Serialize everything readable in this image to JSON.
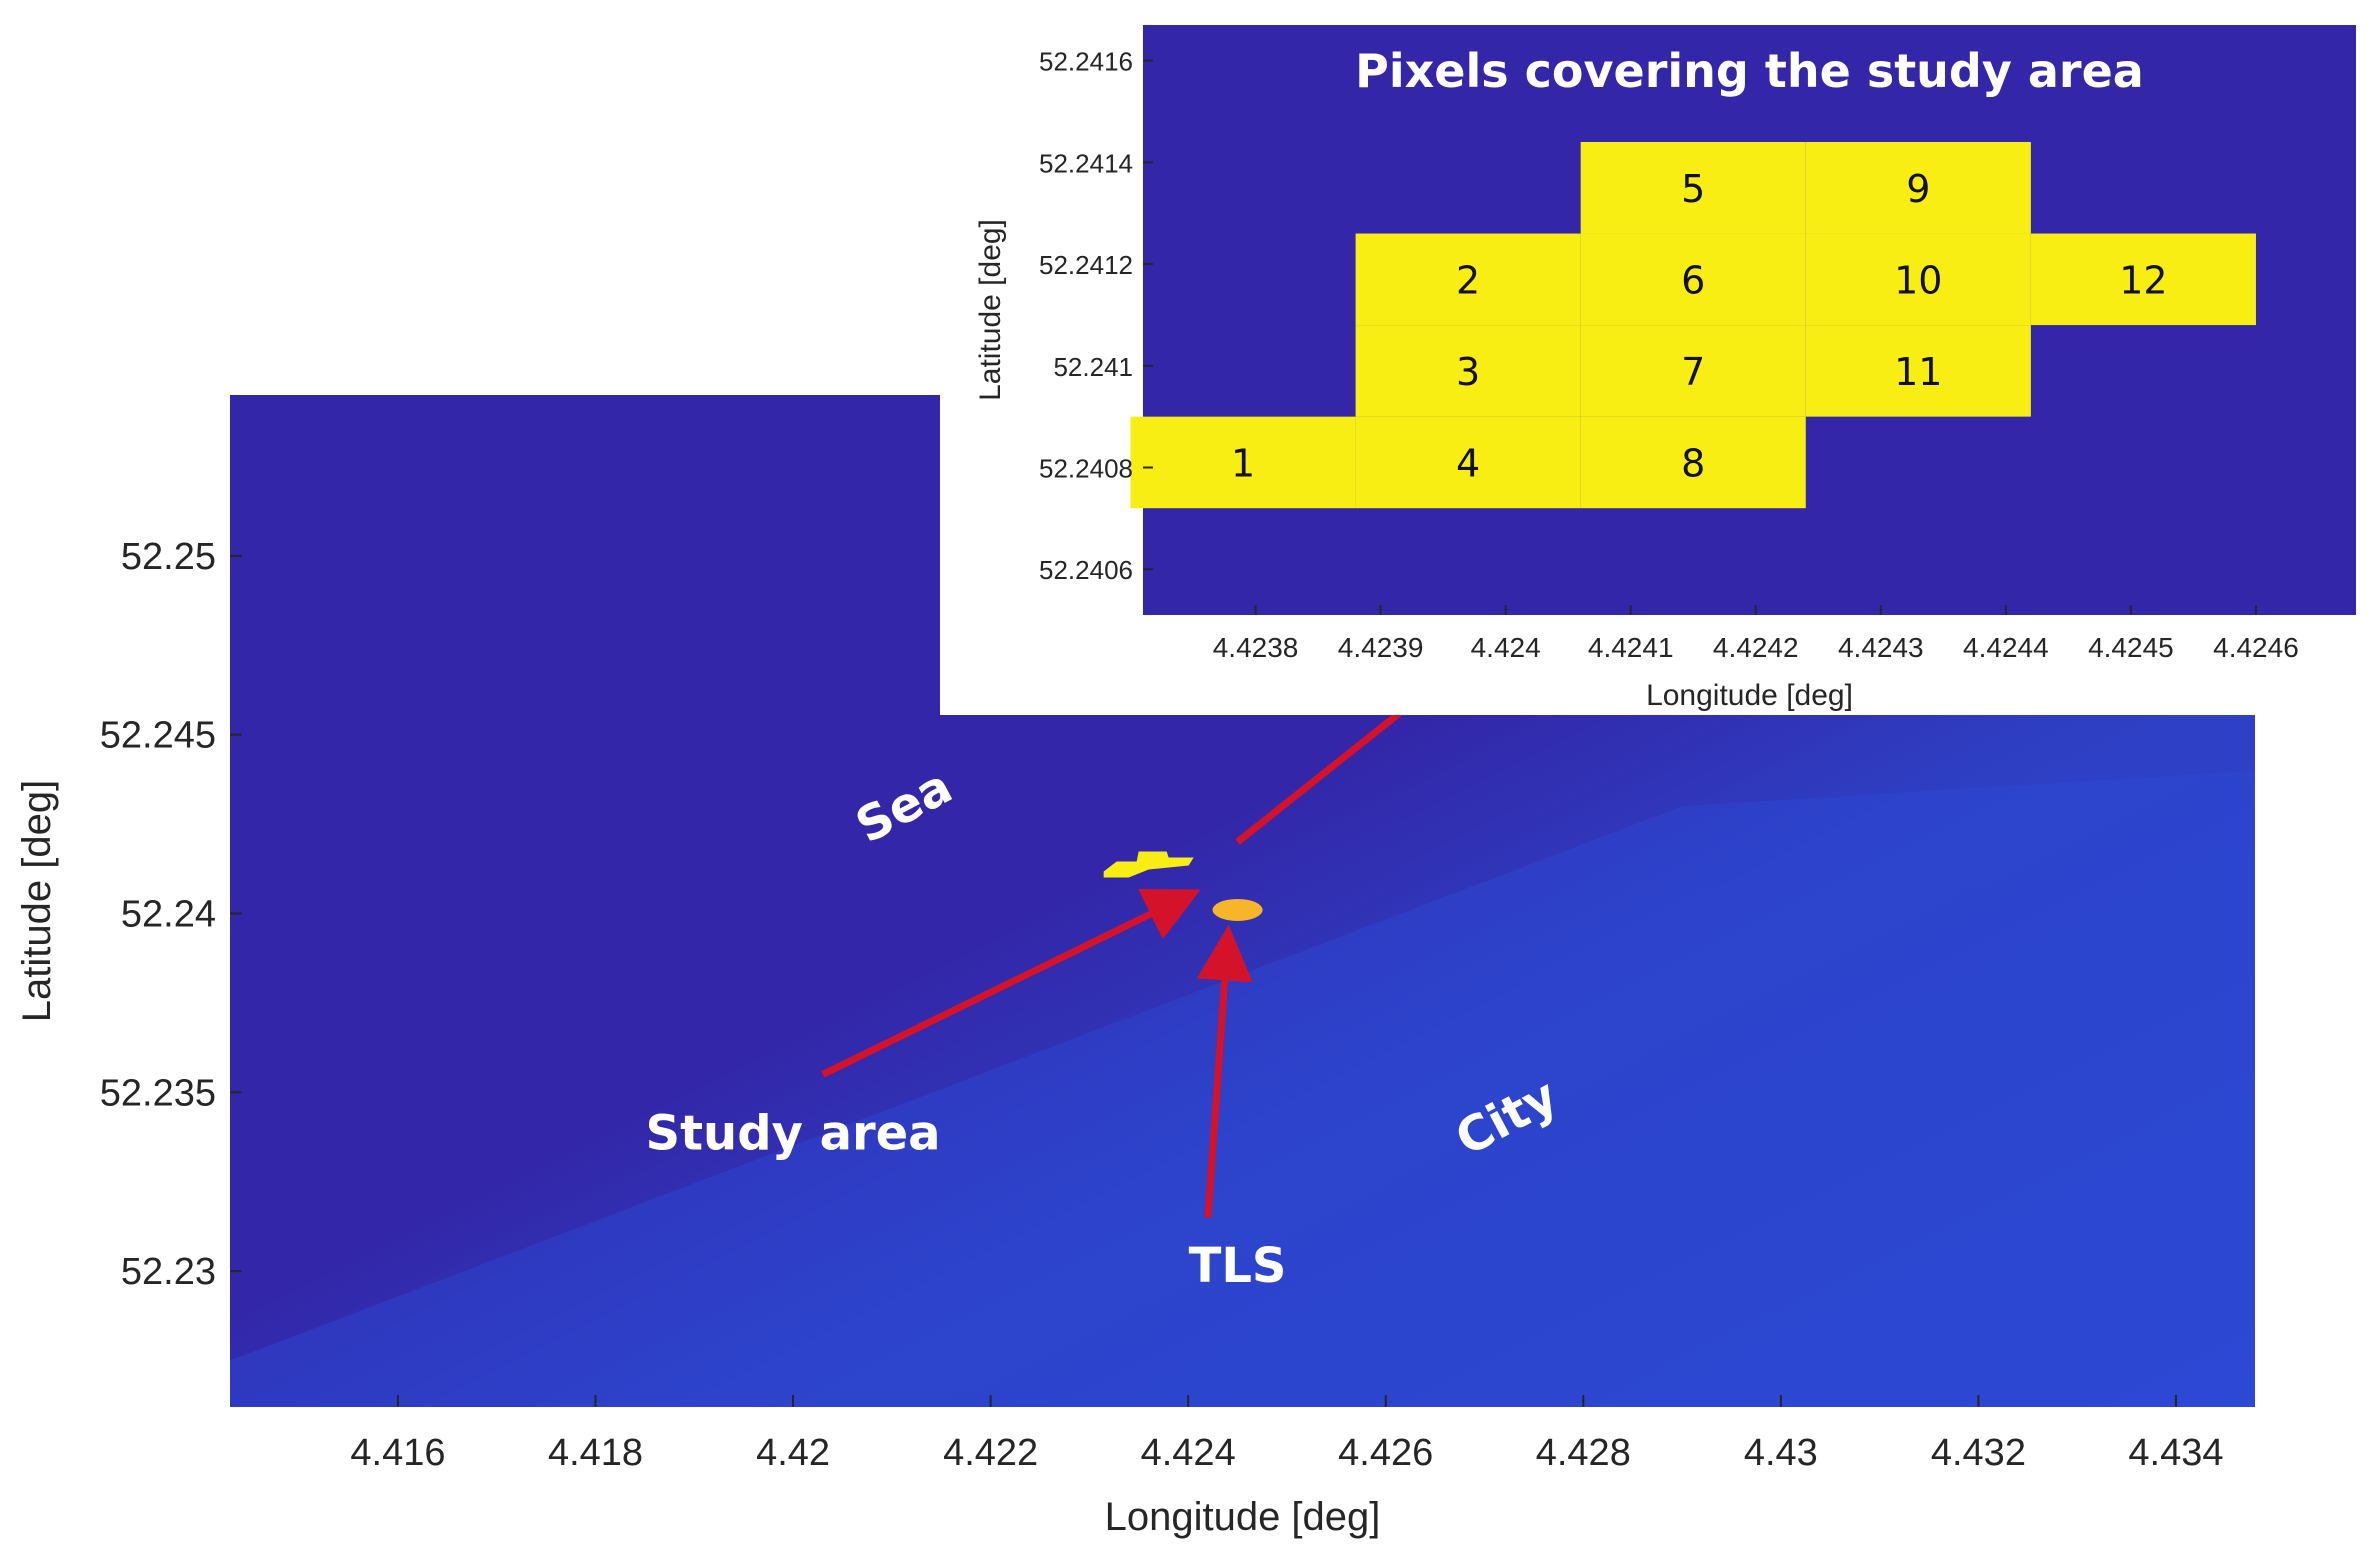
{
  "chart_data": [
    {
      "type": "heatmap",
      "title": "",
      "xlabel": "Longitude [deg]",
      "ylabel": "Latitude [deg]",
      "xlim": [
        4.4143,
        4.4348
      ],
      "ylim": [
        52.2262,
        52.2545
      ],
      "x_ticks": [
        4.416,
        4.418,
        4.42,
        4.422,
        4.424,
        4.426,
        4.428,
        4.43,
        4.432,
        4.434
      ],
      "x_tick_labels": [
        "4.416",
        "4.418",
        "4.42",
        "4.422",
        "4.424",
        "4.426",
        "4.428",
        "4.43",
        "4.432",
        "4.434"
      ],
      "y_ticks": [
        52.25,
        52.245,
        52.24,
        52.235,
        52.23
      ],
      "y_tick_labels": [
        "52.25",
        "52.245",
        "52.24",
        "52.235",
        "52.23"
      ],
      "grid": false,
      "colors": {
        "background": "#3326a8",
        "city": "#2c49d4",
        "highlight": "#f9ee14",
        "tls": "#f7b52a",
        "arrow": "#d4122a"
      },
      "markers": [
        {
          "name": "study-area",
          "x": 4.4236,
          "y": 52.2414
        },
        {
          "name": "tls",
          "x": 4.4245,
          "y": 52.2401
        }
      ],
      "annotations": [
        {
          "text": "Sea",
          "x": 4.4212,
          "y": 52.2426
        },
        {
          "text": "Study area",
          "x": 4.42,
          "y": 52.2334
        },
        {
          "text": "TLS",
          "x": 4.4245,
          "y": 52.2297
        },
        {
          "text": "City",
          "x": 4.4273,
          "y": 52.2339
        }
      ],
      "arrows": [
        {
          "from": [
            4.4203,
            52.2355
          ],
          "to": [
            4.424,
            52.2405
          ]
        },
        {
          "from": [
            4.4242,
            52.2315
          ],
          "to": [
            4.4244,
            52.2393
          ]
        },
        {
          "from": [
            4.4245,
            52.242
          ],
          "to": [
            4.427,
            52.2475
          ]
        }
      ]
    },
    {
      "type": "heatmap",
      "title": "Pixels covering the study area",
      "xlabel": "Longitude [deg]",
      "ylabel": "Latitude [deg]",
      "xlim": [
        4.42371,
        4.42468
      ],
      "ylim": [
        52.24051,
        52.24167
      ],
      "x_ticks": [
        4.4238,
        4.4239,
        4.424,
        4.4241,
        4.4242,
        4.4243,
        4.4244,
        4.4245,
        4.4246
      ],
      "x_tick_labels": [
        "4.4238",
        "4.4239",
        "4.424",
        "4.4241",
        "4.4242",
        "4.4243",
        "4.4244",
        "4.4245",
        "4.4246"
      ],
      "y_ticks": [
        52.2416,
        52.2414,
        52.2412,
        52.241,
        52.2408,
        52.2406
      ],
      "y_tick_labels": [
        "52.2416",
        "52.2414",
        "52.2412",
        "52.241",
        "52.2408",
        "52.2406"
      ],
      "grid": false,
      "colors": {
        "background": "#3326a8",
        "pixel": "#f9ee14"
      },
      "pixel_size": {
        "lon": 0.00018,
        "lat": 0.00018
      },
      "pixels": [
        {
          "label": "1",
          "lon": 4.42379,
          "lat": 52.24081
        },
        {
          "label": "2",
          "lon": 4.42397,
          "lat": 52.24117
        },
        {
          "label": "3",
          "lon": 4.42397,
          "lat": 52.24099
        },
        {
          "label": "4",
          "lon": 4.42397,
          "lat": 52.24081
        },
        {
          "label": "5",
          "lon": 4.42415,
          "lat": 52.24135
        },
        {
          "label": "6",
          "lon": 4.42415,
          "lat": 52.24117
        },
        {
          "label": "7",
          "lon": 4.42415,
          "lat": 52.24099
        },
        {
          "label": "8",
          "lon": 4.42415,
          "lat": 52.24081
        },
        {
          "label": "9",
          "lon": 4.42433,
          "lat": 52.24135
        },
        {
          "label": "10",
          "lon": 4.42433,
          "lat": 52.24117
        },
        {
          "label": "11",
          "lon": 4.42433,
          "lat": 52.24099
        },
        {
          "label": "12",
          "lon": 4.42451,
          "lat": 52.24117
        }
      ]
    }
  ]
}
